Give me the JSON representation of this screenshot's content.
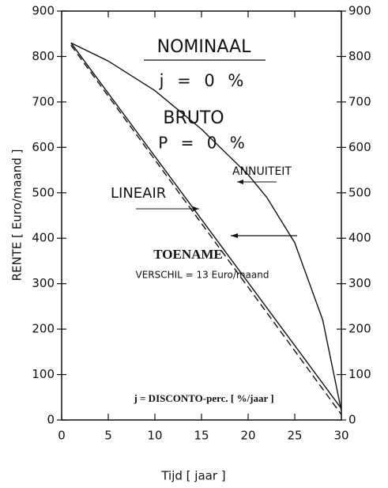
{
  "chart_data": {
    "type": "line",
    "xlabel": "Tijd [ jaar ]",
    "ylabel": "RENTE [ Euro/maand ]",
    "xlim": [
      0,
      30
    ],
    "xticks": [
      0,
      5,
      10,
      15,
      20,
      25,
      30
    ],
    "ylim": [
      0,
      900
    ],
    "yticks": [
      0,
      100,
      200,
      300,
      400,
      500,
      600,
      700,
      800,
      900
    ],
    "annotations": [
      "NOMINAAL",
      "j = 0 %",
      "BRUTO",
      "P = 0 %",
      "ANNUITEIT",
      "LINEAIR",
      "TOENAME",
      "VERSCHIL = 13 Euro/maand",
      "j = DISCONTO-perc. [ %/jaar ]"
    ],
    "series": [
      {
        "name": "ANNUITEIT",
        "color": "#111111",
        "style": "solid",
        "x": [
          1,
          5,
          10,
          15,
          20,
          22,
          25,
          28,
          30
        ],
        "values": [
          830,
          790,
          725,
          640,
          540,
          490,
          390,
          220,
          20
        ]
      },
      {
        "name": "LINEAIR",
        "color": "#111111",
        "style": "solid",
        "x": [
          1,
          30
        ],
        "values": [
          830,
          25
        ]
      },
      {
        "name": "LINEAIR",
        "color": "#111111",
        "style": "dashed",
        "x": [
          1,
          30
        ],
        "values": [
          825,
          12
        ]
      }
    ]
  }
}
